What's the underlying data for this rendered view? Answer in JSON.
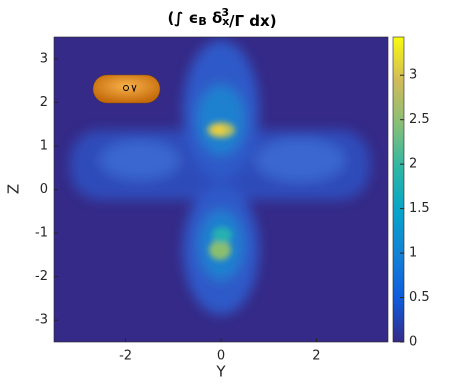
{
  "chart_data": {
    "type": "heatmap",
    "title_parts": [
      "(∫ ϵ",
      "B",
      " δ",
      "x",
      "3",
      "/Γ dx)"
    ],
    "xlabel": "Y",
    "ylabel": "Z",
    "xlim": [
      -3.5,
      3.5
    ],
    "xticks": [
      -2,
      0,
      2
    ],
    "ylim": [
      -3.5,
      3.5
    ],
    "yticks": [
      -3,
      -2,
      -1,
      0,
      1,
      2,
      3
    ],
    "clim": [
      0,
      3.43
    ],
    "cticks": [
      0,
      0.5,
      1,
      1.5,
      2,
      2.5,
      3
    ],
    "colormap": [
      "#352a87",
      "#0f5cdd",
      "#1481d6",
      "#06a4ca",
      "#2eb7a4",
      "#87bf77",
      "#d1bb59",
      "#f9fb0e"
    ]
  }
}
